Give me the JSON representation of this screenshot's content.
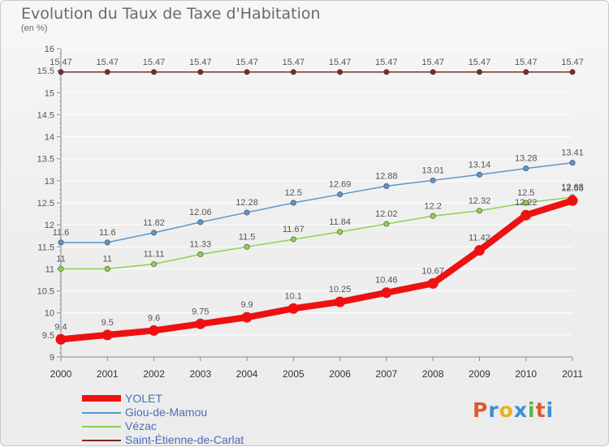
{
  "header": {
    "title": "Evolution du Taux de Taxe d'Habitation",
    "subtitle": "(en %)"
  },
  "logo": {
    "text": "Proxiti",
    "letter_colors": [
      "#e05a2a",
      "#3a8fd8",
      "#e8b020",
      "#3a8fd8",
      "#59b548",
      "#e05a2a",
      "#3a8fd8"
    ]
  },
  "chart_data": {
    "type": "line",
    "x": [
      "2000",
      "2001",
      "2002",
      "2003",
      "2004",
      "2005",
      "2006",
      "2007",
      "2008",
      "2009",
      "2010",
      "2011"
    ],
    "ylim": [
      9,
      16
    ],
    "yticks": [
      "9",
      "9.5",
      "10",
      "10.5",
      "11",
      "11.5",
      "12",
      "12.5",
      "13",
      "13.5",
      "14",
      "14.5",
      "15",
      "15.5",
      "16"
    ],
    "grid": "horizontal",
    "legend_position": "bottom-left",
    "series": [
      {
        "name": "Saint-Étienne-de-Carlat",
        "color": "#7a2a2a",
        "width": 1.5,
        "values": [
          15.47,
          15.47,
          15.47,
          15.47,
          15.47,
          15.47,
          15.47,
          15.47,
          15.47,
          15.47,
          15.47,
          15.47
        ],
        "labels": [
          "15.47",
          "15.47",
          "15.47",
          "15.47",
          "15.47",
          "15.47",
          "15.47",
          "15.47",
          "15.47",
          "15.47",
          "15.47",
          "15.47"
        ]
      },
      {
        "name": "Giou-de-Mamou",
        "color": "#5b96cc",
        "width": 1.5,
        "values": [
          11.6,
          11.6,
          11.82,
          12.06,
          12.28,
          12.5,
          12.69,
          12.88,
          13.01,
          13.14,
          13.28,
          13.41
        ],
        "labels": [
          "11.6",
          "11.6",
          "11.82",
          "12.06",
          "12.28",
          "12.5",
          "12.69",
          "12.88",
          "13.01",
          "13.14",
          "13.28",
          "13.41"
        ]
      },
      {
        "name": "Vézac",
        "color": "#8fd14f",
        "width": 1.5,
        "values": [
          11,
          11,
          11.11,
          11.33,
          11.5,
          11.67,
          11.84,
          12.02,
          12.2,
          12.32,
          12.5,
          12.63
        ],
        "labels": [
          "11",
          "11",
          "11.11",
          "11.33",
          "11.5",
          "11.67",
          "11.84",
          "12.02",
          "12.2",
          "12.32",
          "12.5",
          "12.63"
        ]
      },
      {
        "name": "YOLET",
        "color": "#ee1111",
        "width": 8,
        "values": [
          9.4,
          9.5,
          9.6,
          9.75,
          9.9,
          10.1,
          10.25,
          10.46,
          10.67,
          11.42,
          12.22,
          12.55
        ],
        "labels": [
          "9.4",
          "9.5",
          "9.6",
          "9.75",
          "9.9",
          "10.1",
          "10.25",
          "10.46",
          "10.67",
          "11.42",
          "12.22",
          "12.55"
        ]
      }
    ],
    "legend": [
      "YOLET",
      "Giou-de-Mamou",
      "Vézac",
      "Saint-Étienne-de-Carlat"
    ]
  }
}
